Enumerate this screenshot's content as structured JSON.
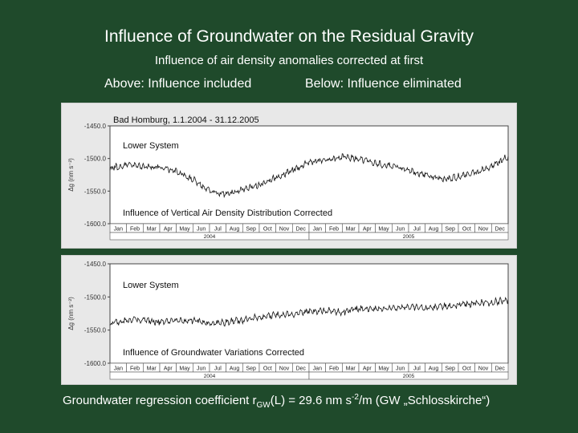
{
  "slide": {
    "title": "Influence of Groundwater on the Residual Gravity",
    "subtitle": "Influence of air density anomalies corrected at first",
    "label_above": "Above: Influence included",
    "label_below": "Below: Influence eliminated",
    "footer": {
      "prefix": "Groundwater regression coefficient r",
      "sub_gw": "GW",
      "mid": "(L) = 29.6 nm s",
      "sup_exp": "-2",
      "suffix": "/m (GW „Schlosskirche“)"
    }
  },
  "chart_data": [
    {
      "type": "line",
      "title": "Bad Homburg, 1.1.2004 - 31.12.2005",
      "series_label": "Lower System",
      "annotation": "Influence of Vertical Air Density Distribution Corrected",
      "ylabel": "Δg (nm s⁻²)",
      "ylim": [
        -1600.0,
        -1450.0
      ],
      "yticks": [
        "-1450.0",
        "-1500.0",
        "-1550.0",
        "-1600.0"
      ],
      "month_labels": [
        "Jan",
        "Feb",
        "Mar",
        "Apr",
        "May",
        "Jun",
        "Jul",
        "Aug",
        "Sep",
        "Oct",
        "Nov",
        "Dec",
        "Jan",
        "Feb",
        "Mar",
        "Apr",
        "May",
        "Jun",
        "Jul",
        "Aug",
        "Sep",
        "Oct",
        "Nov",
        "Dec"
      ],
      "year_labels": [
        "2004",
        "2005"
      ],
      "series": [
        {
          "x": [
            0,
            1,
            2,
            3,
            4,
            5,
            6,
            7,
            8,
            9,
            10,
            11,
            12,
            13,
            14,
            15,
            16,
            17,
            18,
            19,
            20,
            21,
            22,
            23,
            24
          ],
          "y": [
            -1515,
            -1510,
            -1512,
            -1514,
            -1520,
            -1532,
            -1550,
            -1555,
            -1548,
            -1540,
            -1530,
            -1518,
            -1505,
            -1503,
            -1498,
            -1500,
            -1508,
            -1512,
            -1518,
            -1525,
            -1532,
            -1528,
            -1522,
            -1512,
            -1497
          ]
        }
      ]
    },
    {
      "type": "line",
      "title": "",
      "series_label": "Lower System",
      "annotation": "Influence of Groundwater Variations Corrected",
      "ylabel": "Δg (nm s⁻²)",
      "ylim": [
        -1600.0,
        -1450.0
      ],
      "yticks": [
        "-1450.0",
        "-1500.0",
        "-1550.0",
        "-1600.0"
      ],
      "month_labels": [
        "Jan",
        "Feb",
        "Mar",
        "Apr",
        "May",
        "Jun",
        "Jul",
        "Aug",
        "Sep",
        "Oct",
        "Nov",
        "Dec",
        "Jan",
        "Feb",
        "Mar",
        "Apr",
        "May",
        "Jun",
        "Jul",
        "Aug",
        "Sep",
        "Oct",
        "Nov",
        "Dec"
      ],
      "year_labels": [
        "2004",
        "2005"
      ],
      "series": [
        {
          "x": [
            0,
            1,
            2,
            3,
            4,
            5,
            6,
            7,
            8,
            9,
            10,
            11,
            12,
            13,
            14,
            15,
            16,
            17,
            18,
            19,
            20,
            21,
            22,
            23,
            24
          ],
          "y": [
            -1540,
            -1535,
            -1535,
            -1538,
            -1537,
            -1535,
            -1540,
            -1538,
            -1535,
            -1530,
            -1528,
            -1526,
            -1522,
            -1520,
            -1523,
            -1518,
            -1518,
            -1516,
            -1515,
            -1517,
            -1514,
            -1512,
            -1510,
            -1508,
            -1505
          ]
        }
      ]
    }
  ]
}
